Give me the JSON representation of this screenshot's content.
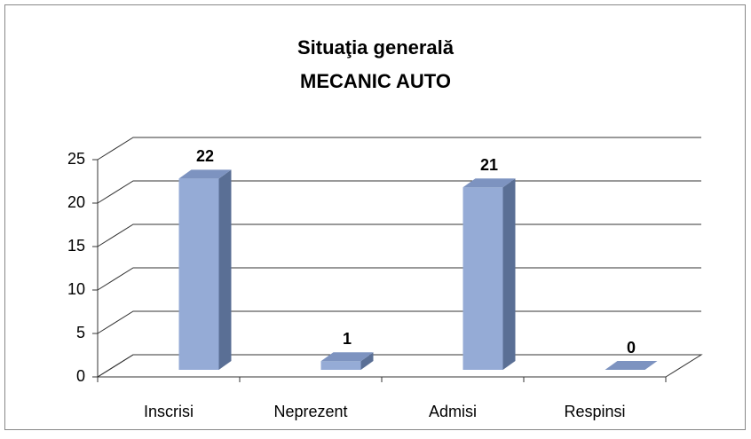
{
  "chart_data": {
    "type": "bar3d",
    "title": [
      "Situaţia generală",
      "MECANIC AUTO"
    ],
    "categories": [
      "Inscrisi",
      "Neprezent",
      "Admisi",
      "Respinsi"
    ],
    "values": [
      22,
      1,
      21,
      0
    ],
    "color": "#95abd6",
    "ylim": [
      0,
      25
    ],
    "yticks": [
      0,
      5,
      10,
      15,
      20,
      25
    ],
    "grid": true
  }
}
